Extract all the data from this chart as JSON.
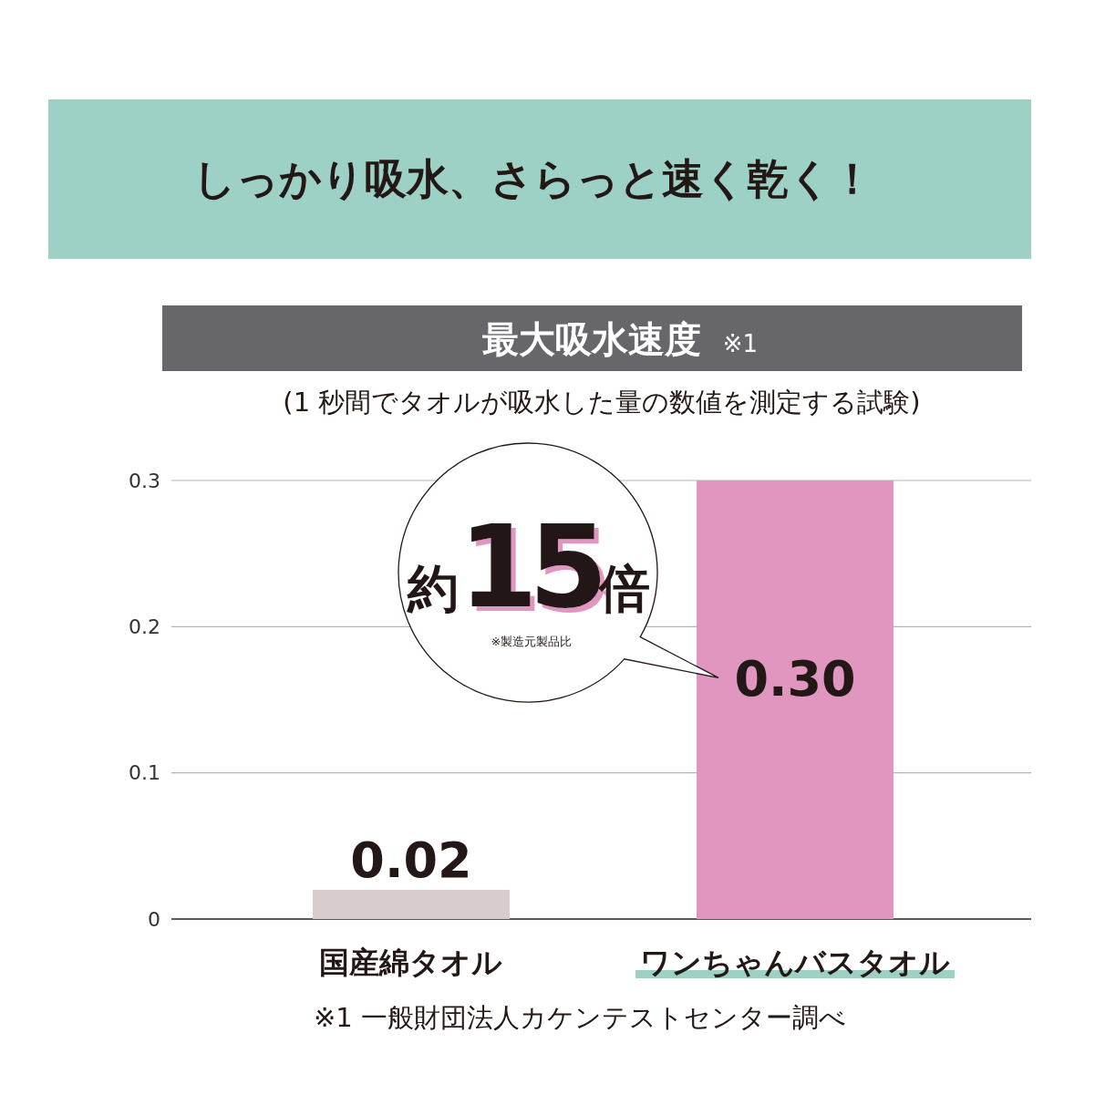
{
  "chart_data": {
    "type": "bar",
    "title": "しっかり吸水、さらっと速く乾く！",
    "subtitle": "最大吸水速度 ※1",
    "categories": [
      "国産綿タオル",
      "ワンちゃんバスタオル"
    ],
    "values": [
      0.02,
      0.3
    ],
    "colors": [
      "#d7cdcd",
      "#e096bf"
    ],
    "value_labels": [
      "0.02",
      "0.30"
    ],
    "ylim": [
      0,
      0.3
    ],
    "yticks": [
      0,
      0.1,
      0.2,
      0.3
    ],
    "grid": "y",
    "annotations": [
      "(1 秒間でタオルが吸水した量の数値を測定する試験)",
      "約15倍",
      "※製造元製品比",
      "※1 一般財団法人カケンテストセンター調べ"
    ]
  }
}
